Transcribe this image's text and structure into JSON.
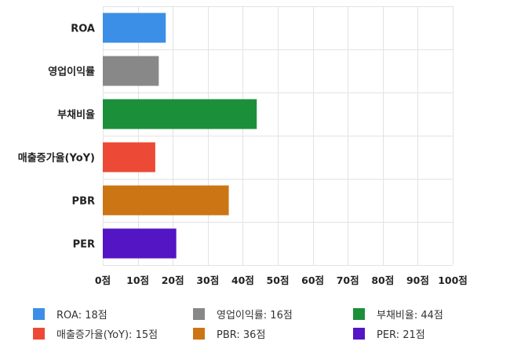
{
  "chart_data": {
    "type": "bar",
    "orientation": "horizontal",
    "categories": [
      "ROA",
      "영업이익률",
      "부채비율",
      "매출증가율(YoY)",
      "PBR",
      "PER"
    ],
    "values": [
      18,
      16,
      44,
      15,
      36,
      21
    ],
    "colors": [
      "#3c8fe6",
      "#888888",
      "#1b8f3a",
      "#ec4a36",
      "#cc7514",
      "#5415c4"
    ],
    "xlim": [
      0,
      100
    ],
    "xticks": [
      0,
      10,
      20,
      30,
      40,
      50,
      60,
      70,
      80,
      90,
      100
    ],
    "tick_suffix": "점",
    "grid": true,
    "legend_position": "bottom",
    "legend": [
      "ROA: 18점",
      "영업이익률: 16점",
      "부채비율: 44점",
      "매출증가율(YoY): 15점",
      "PBR: 36점",
      "PER: 21점"
    ]
  }
}
